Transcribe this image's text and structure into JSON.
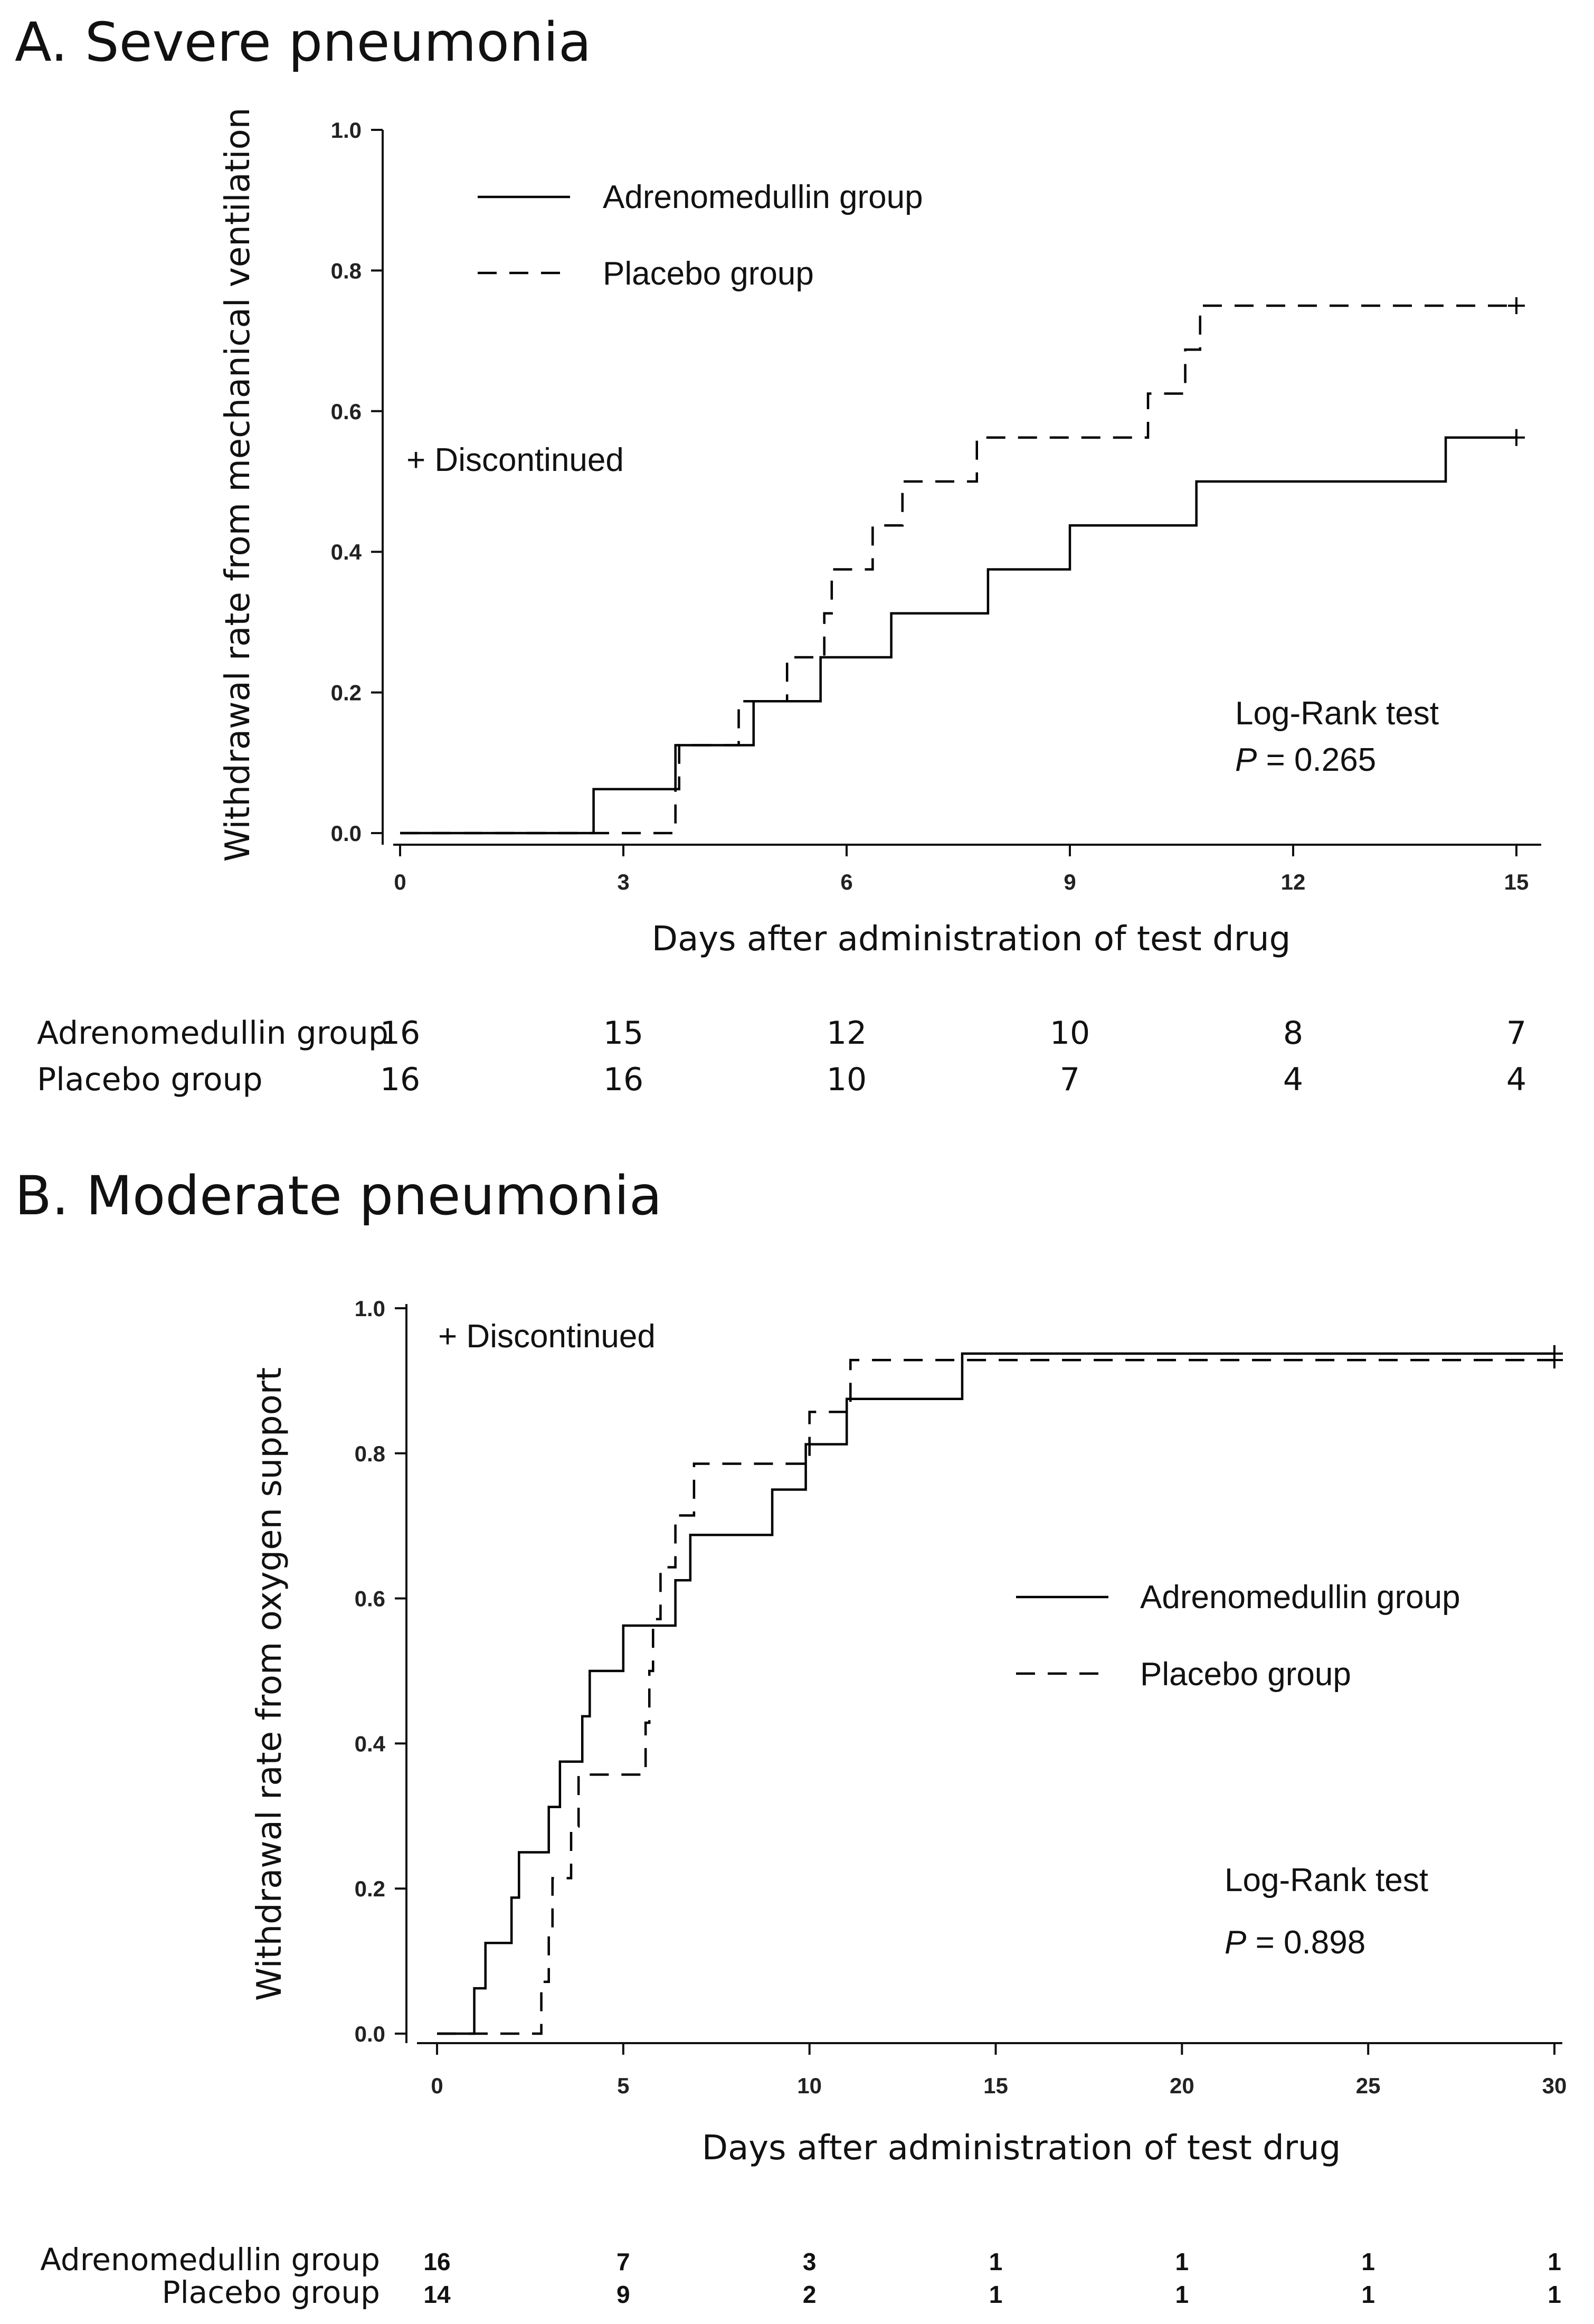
{
  "chart_data": [
    {
      "id": "A",
      "type": "line",
      "step": true,
      "title": "A. Severe pneumonia",
      "xlabel": "Days after administration of test drug",
      "ylabel": "Withdrawal rate from mechanical ventilation",
      "xlim": [
        0,
        15
      ],
      "ylim": [
        0,
        1
      ],
      "xticks": [
        "0",
        "3",
        "6",
        "9",
        "12",
        "15"
      ],
      "yticks": [
        "0.0",
        "0.2",
        "0.4",
        "0.6",
        "0.8",
        "1.0"
      ],
      "xtick_values": [
        0,
        3,
        6,
        9,
        12,
        15
      ],
      "ytick_values": [
        0,
        0.2,
        0.4,
        0.6,
        0.8,
        1.0
      ],
      "legend": {
        "position": "top-left",
        "entries": [
          {
            "label": "Adrenomedullin group",
            "style": "solid"
          },
          {
            "label": "Placebo group",
            "style": "dashed"
          }
        ]
      },
      "censor_label": "+ Discontinued",
      "test_label": "Log-Rank test",
      "p_symbol": "P",
      "p_text": " = 0.265",
      "series": [
        {
          "name": "Adrenomedullin group",
          "style": "solid",
          "steps": [
            [
              0,
              0
            ],
            [
              2.6,
              0.0625
            ],
            [
              3.7,
              0.125
            ],
            [
              4.75,
              0.1875
            ],
            [
              5.65,
              0.25
            ],
            [
              6.6,
              0.3125
            ],
            [
              7.9,
              0.375
            ],
            [
              9.0,
              0.4375
            ],
            [
              10.7,
              0.5
            ],
            [
              14.05,
              0.5625
            ]
          ],
          "end": 15,
          "censor": [
            [
              15,
              0.5625
            ]
          ]
        },
        {
          "name": "Placebo group",
          "style": "dashed",
          "steps": [
            [
              0,
              0
            ],
            [
              3.7,
              0.0625
            ],
            [
              3.75,
              0.125
            ],
            [
              4.55,
              0.1875
            ],
            [
              5.2,
              0.25
            ],
            [
              5.7,
              0.3125
            ],
            [
              5.8,
              0.375
            ],
            [
              6.35,
              0.4375
            ],
            [
              6.75,
              0.5
            ],
            [
              7.75,
              0.5625
            ],
            [
              10.05,
              0.625
            ],
            [
              10.55,
              0.6875
            ],
            [
              10.75,
              0.75
            ]
          ],
          "end": 15,
          "censor": [
            [
              15,
              0.75
            ]
          ]
        }
      ],
      "risk_table": {
        "at_days": [
          0,
          3,
          6,
          9,
          12,
          15
        ],
        "rows": [
          {
            "label": "Adrenomedullin group",
            "values": [
              "16",
              "15",
              "12",
              "10",
              "8",
              "7"
            ]
          },
          {
            "label": "Placebo group",
            "values": [
              "16",
              "16",
              "10",
              "7",
              "4",
              "4"
            ]
          }
        ]
      }
    },
    {
      "id": "B",
      "type": "line",
      "step": true,
      "title": "B. Moderate pneumonia",
      "xlabel": "Days after administration of test drug",
      "ylabel": "Withdrawal rate from oxygen support",
      "xlim": [
        0,
        30
      ],
      "ylim": [
        0,
        1
      ],
      "xticks": [
        "0",
        "5",
        "10",
        "15",
        "20",
        "25",
        "30"
      ],
      "yticks": [
        "0.0",
        "0.2",
        "0.4",
        "0.6",
        "0.8",
        "1.0"
      ],
      "xtick_values": [
        0,
        5,
        10,
        15,
        20,
        25,
        30
      ],
      "ytick_values": [
        0,
        0.2,
        0.4,
        0.6,
        0.8,
        1.0
      ],
      "legend": {
        "position": "middle-right",
        "entries": [
          {
            "label": "Adrenomedullin group",
            "style": "solid"
          },
          {
            "label": "Placebo group",
            "style": "dashed"
          }
        ]
      },
      "censor_label": "+ Discontinued",
      "test_label": "Log-Rank test",
      "p_symbol": "P",
      "p_text": " = 0.898",
      "series": [
        {
          "name": "Adrenomedullin group",
          "style": "solid",
          "steps": [
            [
              0,
              0
            ],
            [
              1.0,
              0.0625
            ],
            [
              1.3,
              0.125
            ],
            [
              2.0,
              0.1875
            ],
            [
              2.2,
              0.25
            ],
            [
              3.0,
              0.3125
            ],
            [
              3.3,
              0.375
            ],
            [
              3.9,
              0.4375
            ],
            [
              4.1,
              0.5
            ],
            [
              5.0,
              0.5625
            ],
            [
              6.4,
              0.625
            ],
            [
              6.8,
              0.6875
            ],
            [
              9.0,
              0.75
            ],
            [
              9.9,
              0.8125
            ],
            [
              11.0,
              0.875
            ],
            [
              14.1,
              0.9375
            ]
          ],
          "end": 30,
          "censor": [
            [
              30,
              0.9375
            ]
          ]
        },
        {
          "name": "Placebo group",
          "style": "dashed",
          "steps": [
            [
              0,
              0
            ],
            [
              2.8,
              0.0714
            ],
            [
              3.0,
              0.1429
            ],
            [
              3.1,
              0.2143
            ],
            [
              3.6,
              0.2857
            ],
            [
              3.8,
              0.3571
            ],
            [
              5.6,
              0.4286
            ],
            [
              5.7,
              0.5
            ],
            [
              5.8,
              0.5714
            ],
            [
              6.0,
              0.6429
            ],
            [
              6.4,
              0.7143
            ],
            [
              6.9,
              0.7857
            ],
            [
              10.0,
              0.8571
            ],
            [
              11.1,
              0.9286
            ]
          ],
          "end": 30,
          "censor": [
            [
              30,
              0.9286
            ]
          ]
        }
      ],
      "risk_table": {
        "at_days": [
          0,
          5,
          10,
          15,
          20,
          25,
          30
        ],
        "rows": [
          {
            "label": "Adrenomedullin group",
            "values": [
              "16",
              "7",
              "3",
              "1",
              "1",
              "1",
              "1"
            ]
          },
          {
            "label": "Placebo group",
            "values": [
              "14",
              "9",
              "2",
              "1",
              "1",
              "1",
              "1"
            ]
          }
        ]
      }
    }
  ]
}
